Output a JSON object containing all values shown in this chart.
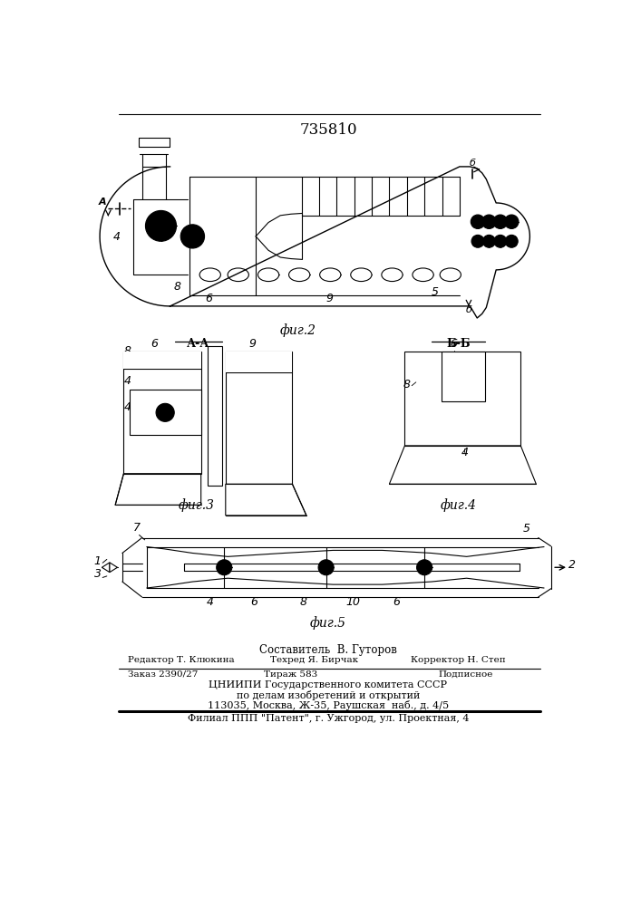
{
  "patent_number": "735810",
  "fig2_caption": "фиг.2",
  "fig3_caption": "фиг.3",
  "fig4_caption": "фиг.4",
  "fig5_caption": "фиг.5",
  "section_aa": "А-А",
  "section_bb": "Б-Б",
  "footer_line1": "Составитель  В. Гуторов",
  "footer_line2_col1": "Редактор Т. Клюкина",
  "footer_line2_col2": "Техред Я. Бирчак",
  "footer_line2_col3": "Корректор Н. Степ",
  "footer_line3_col1": "Заказ 2390/27",
  "footer_line3_col2": "Тираж 583",
  "footer_line3_col3": "Подписное",
  "footer_line4": "ЦНИИПИ Государственного комитета СССР",
  "footer_line5": "по делам изобретений и открытий",
  "footer_line6": "113035, Москва, Ж-35, Раушская  наб., д. 4/5",
  "footer_line7": "Филиал ППП \"Патент\", г. Ужгород, ул. Проектная, 4",
  "bg_color": "#ffffff",
  "line_color": "#000000",
  "label_fontsize": 9,
  "caption_fontsize": 10,
  "title_fontsize": 12
}
